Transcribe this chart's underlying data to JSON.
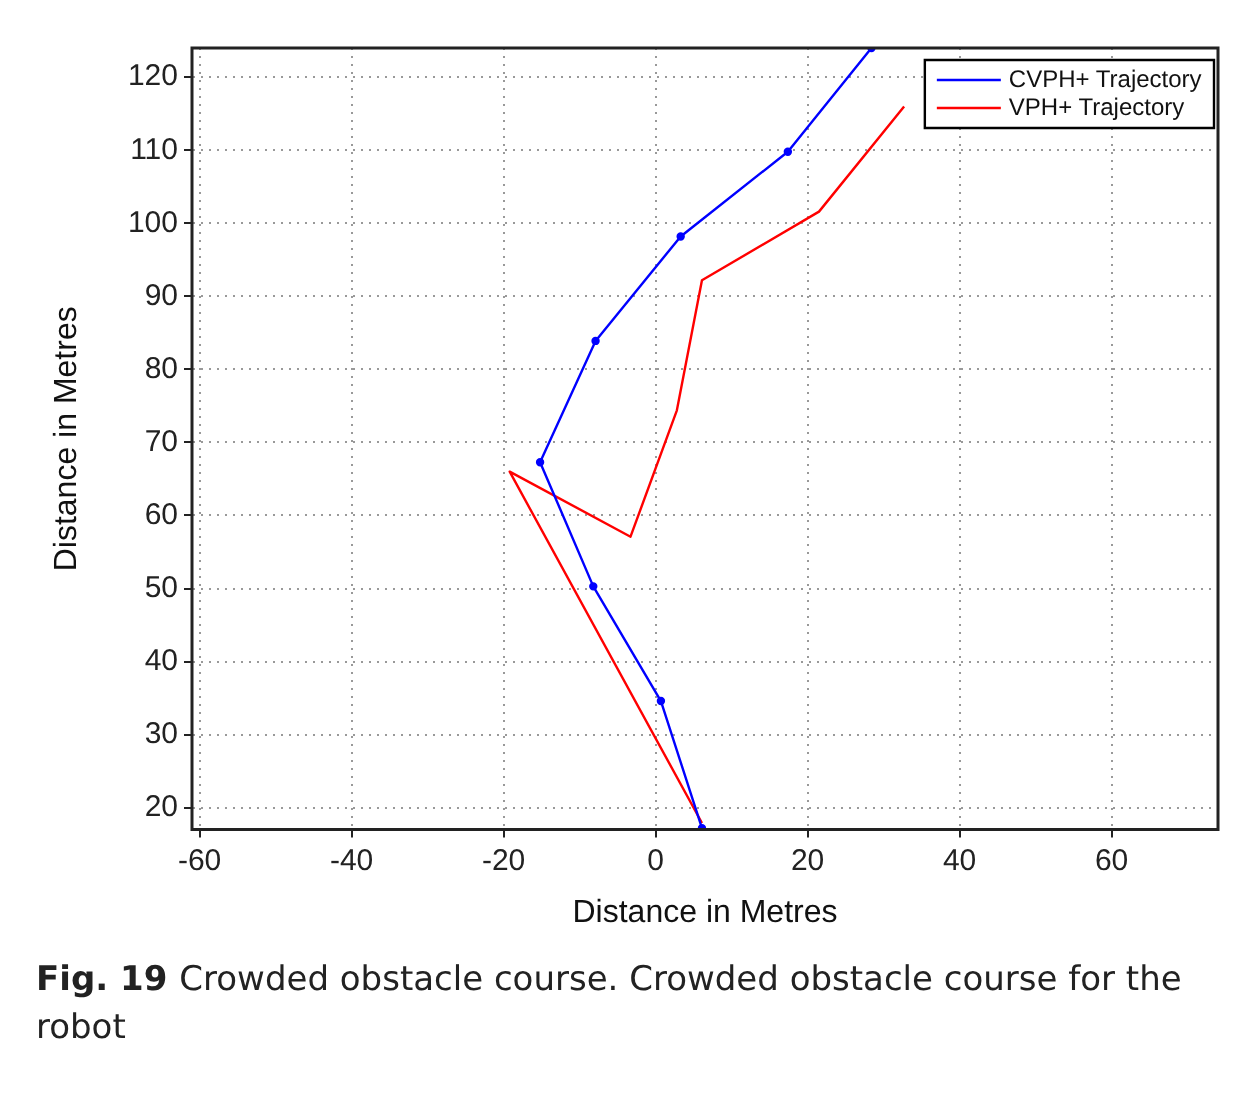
{
  "chart_data": {
    "type": "line",
    "xlabel": "Distance in Metres",
    "ylabel": "Distance in Metres",
    "xlim": [
      -61,
      74
    ],
    "xticks": [
      -60,
      -40,
      -20,
      0,
      20,
      40,
      60
    ],
    "ylim": [
      17,
      124
    ],
    "yticks": [
      20,
      30,
      40,
      50,
      60,
      70,
      80,
      90,
      100,
      110,
      120
    ],
    "grid": true,
    "legend": "top right",
    "line_style": "solid",
    "series": [
      {
        "name": "CVPH+ Trajectory",
        "color": "#0000ff",
        "marker": "circle",
        "x": [
          6.1,
          0.7,
          -8.2,
          -15.2,
          -7.9,
          3.3,
          17.4,
          28.4
        ],
        "values": [
          17.2,
          34.6,
          50.3,
          67.3,
          83.9,
          98.2,
          109.8,
          124
        ]
      },
      {
        "name": "VPH+ Trajectory",
        "color": "#ff0000",
        "marker": "none",
        "x": [
          6.1,
          -19.2,
          -3.3,
          2.8,
          6.1,
          21.5,
          32.7
        ],
        "values": [
          17.9,
          66.0,
          57.1,
          74.4,
          92.2,
          101.6,
          116.0
        ]
      }
    ],
    "annotations": [
      "Fig. 19",
      "Crowded obstacle course. Crowded obstacle course for the robot"
    ]
  }
}
